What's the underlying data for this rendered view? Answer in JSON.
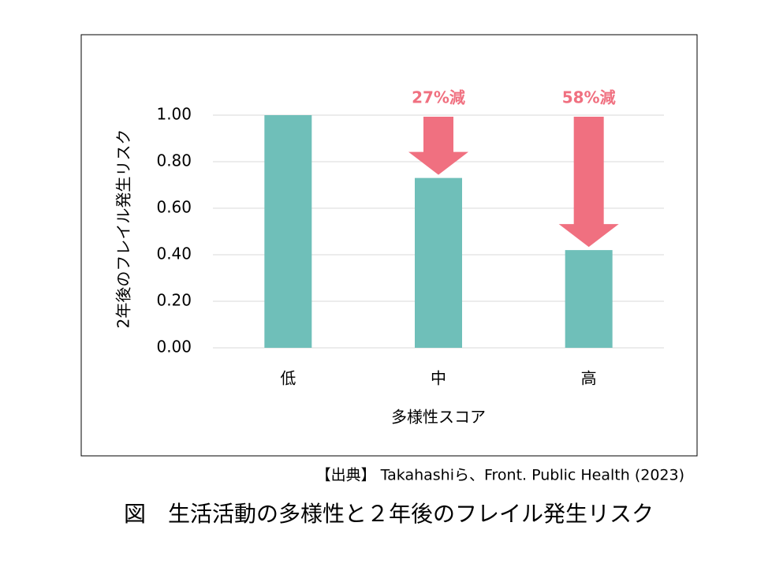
{
  "chart_data": {
    "type": "bar",
    "categories": [
      "低",
      "中",
      "高"
    ],
    "values": [
      1.0,
      0.73,
      0.42
    ],
    "color": "#6fbfb9",
    "ylim": [
      0,
      1
    ],
    "yticks": [
      {
        "value": 0,
        "label": "0.00"
      },
      {
        "value": 0.2,
        "label": "0.20"
      },
      {
        "value": 0.4,
        "label": "0.40"
      },
      {
        "value": 0.6,
        "label": "0.60"
      },
      {
        "value": 0.8,
        "label": "0.80"
      },
      {
        "value": 1,
        "label": "1.00"
      }
    ],
    "grid": true,
    "y_label": "2年後のフレイル発生リスク",
    "x_label": "多様性スコア",
    "annotations": [
      "27%減",
      "58%減"
    ],
    "annotation_color": "#f07080",
    "source": "【出典】 Takahashiら、Front. Public Health (2023)",
    "caption": "図　生活活動の多様性と２年後のフレイル発生リスク"
  }
}
